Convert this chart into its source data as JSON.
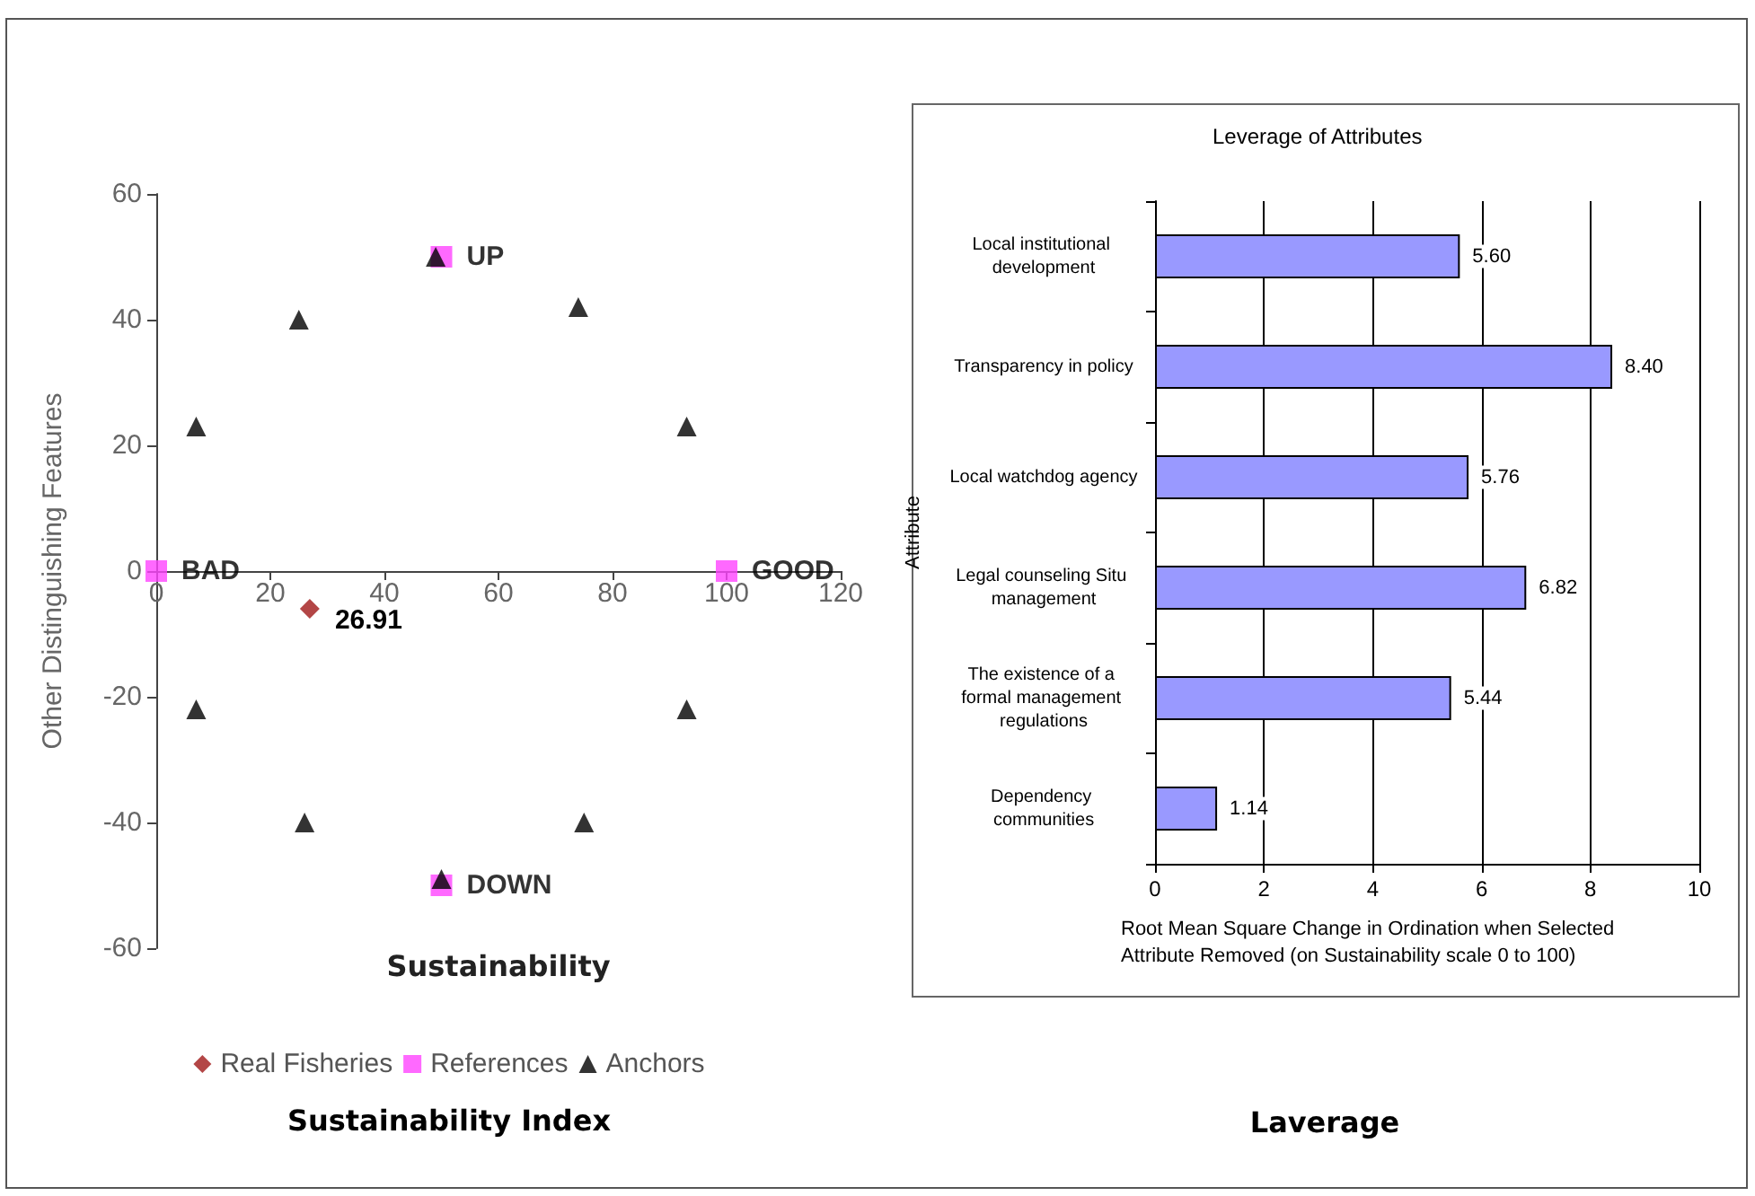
{
  "chart_data": [
    {
      "type": "scatter",
      "title": "Sustainability Index",
      "xlabel": "Sustainability",
      "ylabel": "Other Distinguishing Features",
      "xlim": [
        0,
        120
      ],
      "xticks": [
        0,
        20,
        40,
        60,
        80,
        100,
        120
      ],
      "ylim": [
        -60,
        60
      ],
      "yticks": [
        -60,
        -40,
        -20,
        0,
        20,
        40,
        60
      ],
      "grid": false,
      "legend": "bottom",
      "annotations": [
        {
          "text": "26.91",
          "x": 26.91,
          "y": -6
        }
      ],
      "series": [
        {
          "name": "Real Fisheries",
          "color": "#a01818",
          "marker": "diamond",
          "x": [
            26.91
          ],
          "values": [
            -6
          ]
        },
        {
          "name": "References",
          "color": "#ff44ff",
          "marker": "square",
          "x": [
            0,
            100,
            50,
            50
          ],
          "values": [
            0,
            0,
            50,
            -50
          ],
          "value_labels": [
            "BAD",
            "GOOD",
            "UP",
            "DOWN"
          ]
        },
        {
          "name": "Anchors",
          "color": "#000000",
          "marker": "triangle",
          "x": [
            7,
            25,
            49,
            74,
            93,
            7,
            26,
            50,
            75,
            93
          ],
          "values": [
            23,
            40,
            50,
            42,
            23,
            -22,
            -40,
            -49,
            -40,
            -22
          ]
        }
      ]
    },
    {
      "type": "bar",
      "orientation": "horizontal",
      "title": "Leverage of Attributes",
      "xlabel": "Root Mean Square Change in Ordination when Selected Attribute Removed (on Sustainability scale 0 to 100)",
      "ylabel": "Attribute",
      "categories": [
        "Local institutional development",
        "Transparency in policy",
        "Local watchdog agency",
        "Legal counseling Situ management",
        "The existence of a formal management regulations",
        "Dependency communities"
      ],
      "values": [
        5.6,
        8.4,
        5.76,
        6.82,
        5.44,
        1.14
      ],
      "value_labels": [
        "5.60",
        "8.40",
        "5.76",
        "6.82",
        "5.44",
        "1.14"
      ],
      "color": "#9999ff",
      "xlim": [
        0,
        10
      ],
      "xticks": [
        0,
        2,
        4,
        6,
        8,
        10
      ],
      "grid": "x",
      "legend": false,
      "annotations": [
        "Laverage"
      ]
    }
  ]
}
